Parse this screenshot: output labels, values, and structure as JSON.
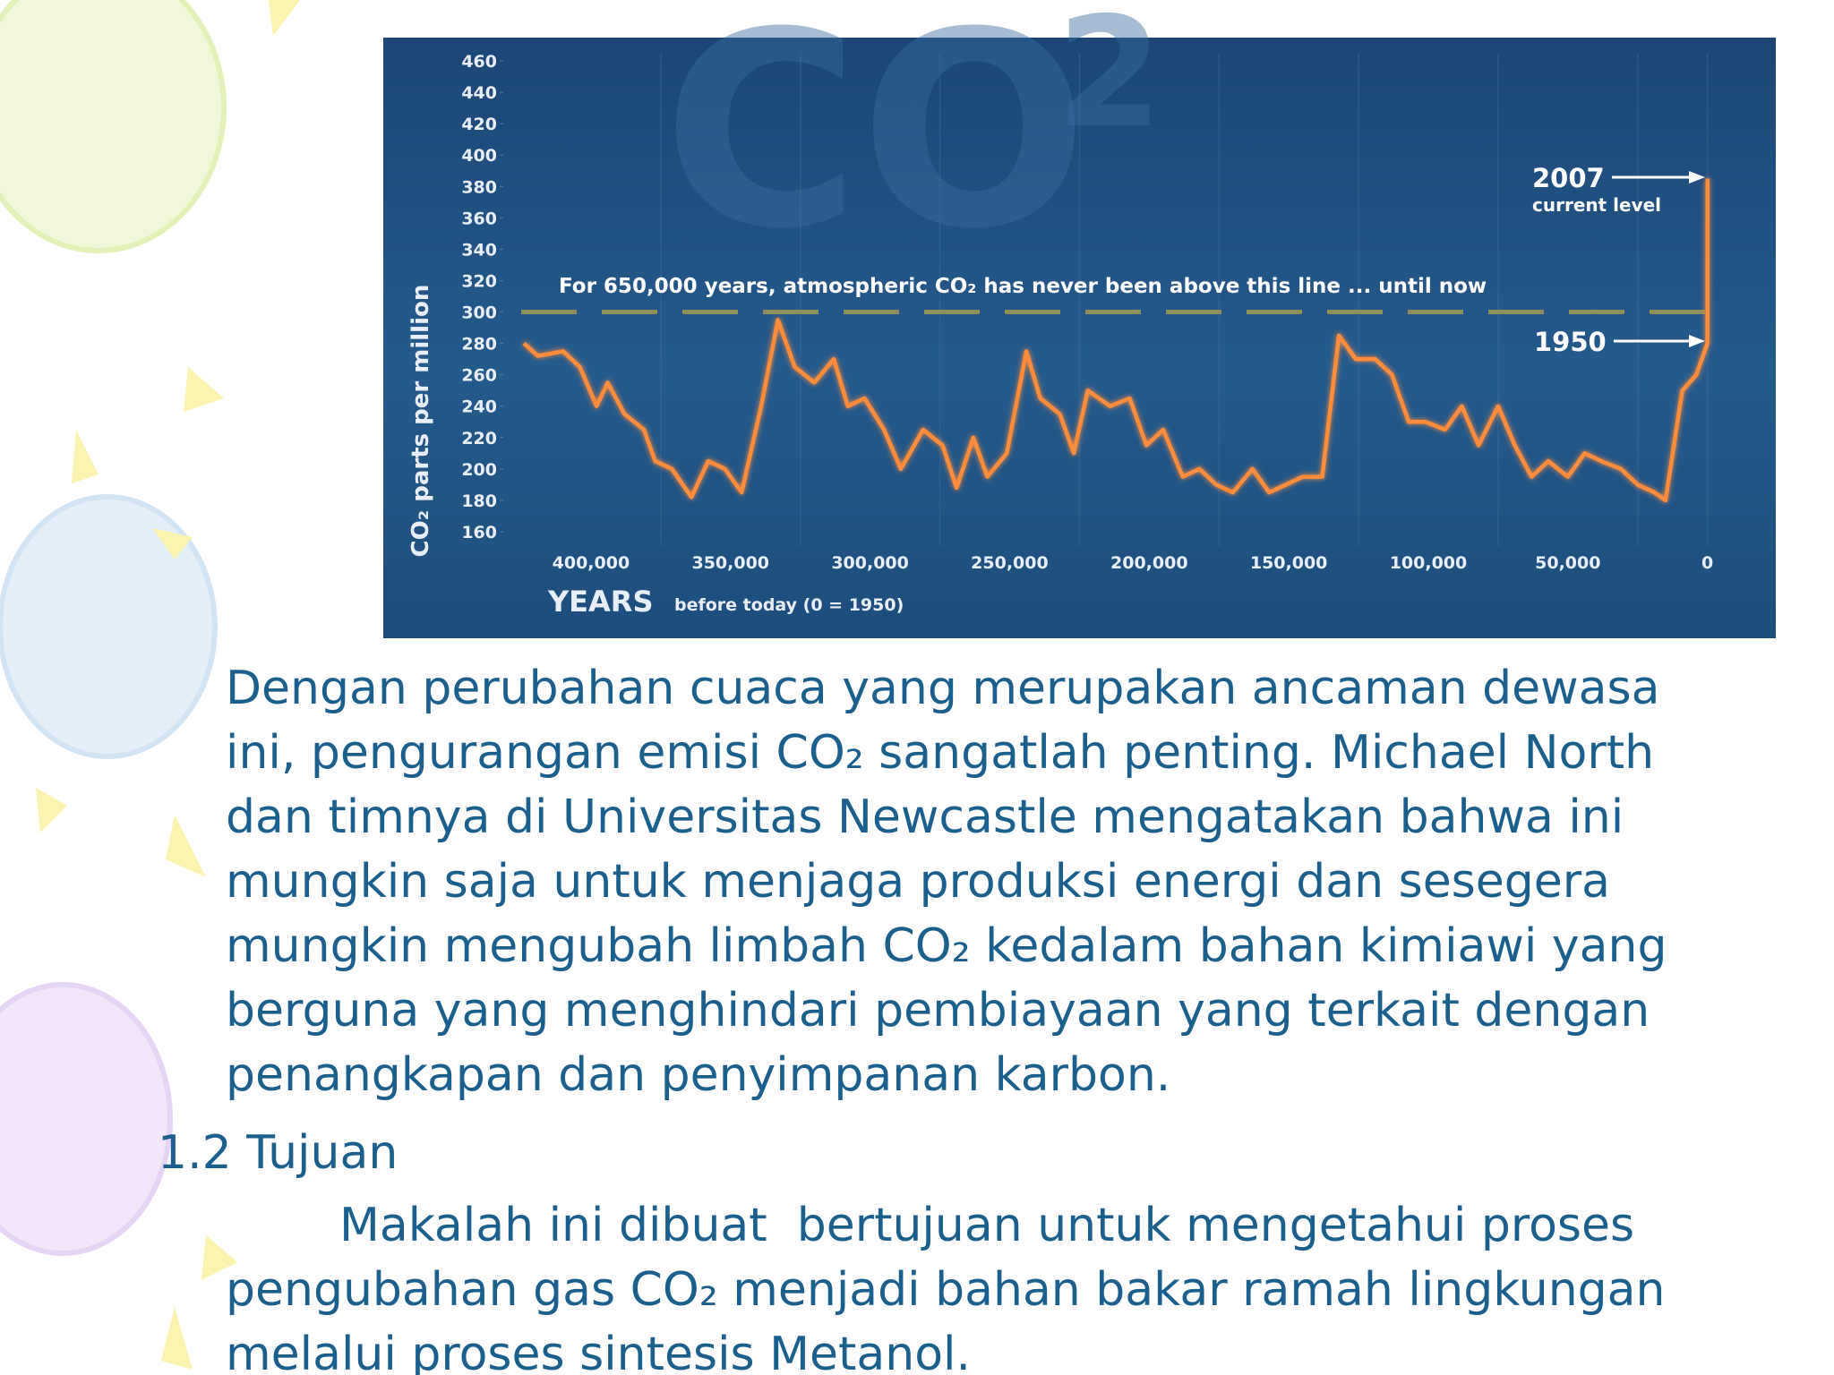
{
  "chart_data": {
    "type": "line",
    "watermark": [
      "CO",
      "2"
    ],
    "y_label": "CO₂ parts per million",
    "x_label": "YEARS",
    "x_label_note": "before today (0 = 1950)",
    "reference_line": {
      "value": 300,
      "label": "For 650,000 years, atmospheric CO₂ has never been above this line ... until now",
      "color": "#8f8f5c"
    },
    "annotations": [
      {
        "text": "2007",
        "note": "current level"
      },
      {
        "text": "1950"
      }
    ],
    "color": "#ff8c3c",
    "x": [
      424000,
      419000,
      410000,
      404000,
      398000,
      394000,
      388000,
      381000,
      377000,
      371000,
      364000,
      358000,
      352000,
      346000,
      339000,
      333000,
      327000,
      320000,
      313000,
      308000,
      302000,
      295000,
      289000,
      281000,
      274000,
      269000,
      263000,
      258000,
      251000,
      244000,
      239000,
      232000,
      227000,
      222000,
      214000,
      207000,
      201000,
      195000,
      188000,
      182000,
      176000,
      170000,
      163000,
      157000,
      151000,
      145000,
      138000,
      132000,
      126000,
      119000,
      113000,
      107000,
      101000,
      94000,
      88000,
      82000,
      75000,
      69000,
      63000,
      57000,
      50000,
      44000,
      38000,
      31000,
      25000,
      19000,
      15000,
      9000,
      4000,
      0,
      -57
    ],
    "values": [
      280,
      272,
      275,
      265,
      240,
      255,
      235,
      225,
      205,
      200,
      182,
      205,
      200,
      185,
      240,
      295,
      265,
      255,
      270,
      240,
      245,
      225,
      200,
      225,
      215,
      188,
      220,
      195,
      210,
      275,
      245,
      235,
      210,
      250,
      240,
      245,
      215,
      225,
      195,
      200,
      190,
      185,
      200,
      185,
      190,
      195,
      195,
      285,
      270,
      270,
      260,
      230,
      230,
      225,
      240,
      215,
      240,
      215,
      195,
      205,
      195,
      210,
      205,
      200,
      190,
      185,
      180,
      250,
      260,
      280,
      385
    ],
    "xlim": [
      425000,
      -3000
    ],
    "ylim": [
      150,
      470
    ],
    "xticks": [
      {
        "value": 400000,
        "label": "400,000"
      },
      {
        "value": 350000,
        "label": "350,000"
      },
      {
        "value": 300000,
        "label": "300,000"
      },
      {
        "value": 250000,
        "label": "250,000"
      },
      {
        "value": 200000,
        "label": "200,000"
      },
      {
        "value": 150000,
        "label": "150,000"
      },
      {
        "value": 100000,
        "label": "100,000"
      },
      {
        "value": 50000,
        "label": "50,000"
      },
      0
    ],
    "yticks": [
      160,
      180,
      200,
      220,
      240,
      260,
      280,
      300,
      320,
      340,
      360,
      380,
      400,
      420,
      440,
      460
    ]
  },
  "body": {
    "paragraph1": [
      "Dengan perubahan cuaca yang merupakan ancaman dewasa",
      "ini, pengurangan emisi CO₂ sangatlah penting. Michael North",
      "dan timnya di Universitas Newcastle mengatakan bahwa ini",
      "mungkin saja untuk menjaga produksi energi dan sesegera",
      "mungkin mengubah limbah CO₂ kedalam bahan kimiawi yang",
      "berguna yang menghindari pembiayaan yang terkait dengan",
      "penangkapan dan penyimpanan karbon."
    ],
    "heading": "1.2 Tujuan",
    "paragraph2": [
      "Makalah ini dibuat  bertujuan untuk mengetahui proses",
      "pengubahan gas CO₂ menjadi bahan bakar ramah lingkungan",
      "melalui proses sintesis Metanol."
    ]
  }
}
